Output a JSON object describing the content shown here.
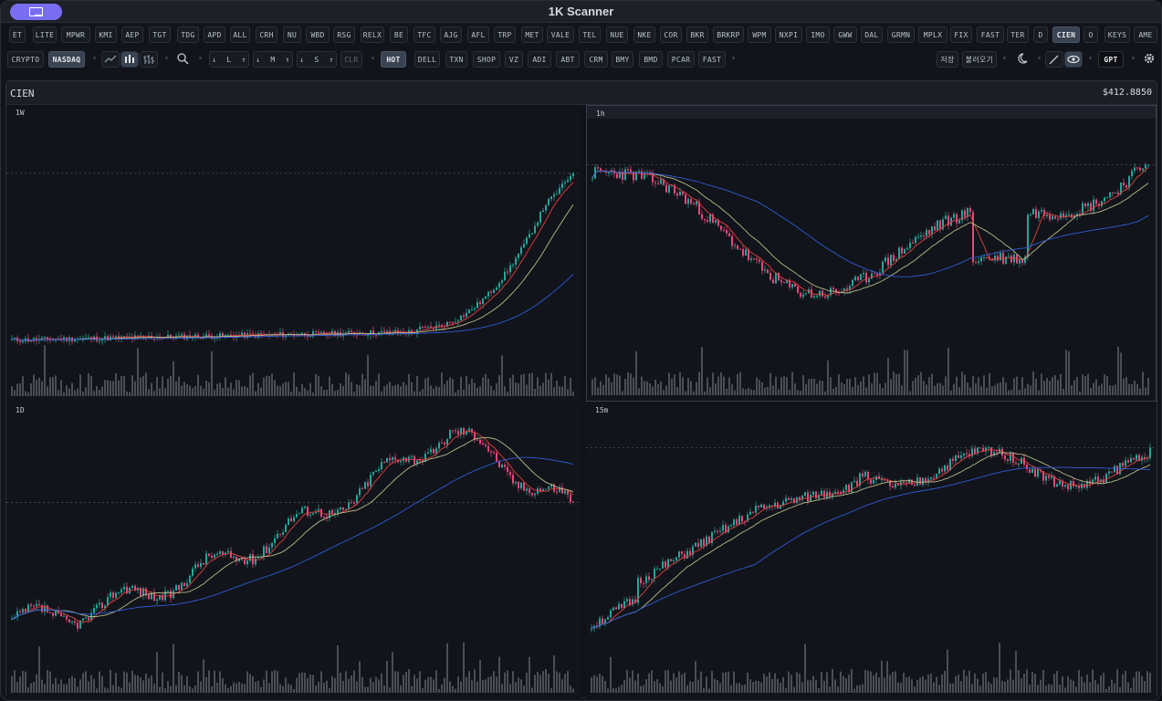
{
  "window": {
    "title": "1K Scanner"
  },
  "tickers": [
    "ET",
    "LITE",
    "MPWR",
    "KMI",
    "AEP",
    "TGT",
    "TDG",
    "APD",
    "ALL",
    "CRH",
    "NU",
    "WBD",
    "RSG",
    "RELX",
    "BE",
    "TFC",
    "AJG",
    "AFL",
    "TRP",
    "MET",
    "VALE",
    "TEL",
    "NUE",
    "NKE",
    "COR",
    "BKR",
    "BRKRP",
    "WPM",
    "NXPI",
    "IMO",
    "GWW",
    "DAL",
    "GRMN",
    "MPLX",
    "FIX",
    "FAST",
    "TER",
    "D",
    "CIEN",
    "O",
    "KEYS",
    "AME"
  ],
  "active_ticker": "CIEN",
  "markets": [
    "CRYPTO",
    "NASDAQ"
  ],
  "active_market": "NASDAQ",
  "sort_buttons": {
    "group1": [
      "↓",
      "L",
      "↑"
    ],
    "group2": [
      "↓",
      "M",
      "↑"
    ],
    "group3": [
      "↓",
      "S",
      "↑"
    ],
    "clear": "CLR"
  },
  "hot_label": "HOT",
  "hot_list": [
    "DELL",
    "TXN",
    "SHOP",
    "VZ",
    "ADI",
    "ABT",
    "CRM",
    "BMY",
    "BMD",
    "PCAR",
    "FAST"
  ],
  "right_buttons": {
    "save": "저장",
    "load": "불러오기",
    "gpt": "GPT"
  },
  "panel": {
    "symbol": "CIEN",
    "price": "$412.8850"
  },
  "charts": [
    {
      "timeframe": "1W"
    },
    {
      "timeframe": "1h"
    },
    {
      "timeframe": "1D"
    },
    {
      "timeframe": "15m"
    }
  ],
  "colors": {
    "up": "#26a69a",
    "down": "#e8477b",
    "ma_fast": "#e04040",
    "ma_mid": "#b9b98a",
    "ma_slow": "#2f5bd6",
    "accent": "#7a6ef0",
    "hot_underline": "#38c172"
  }
}
